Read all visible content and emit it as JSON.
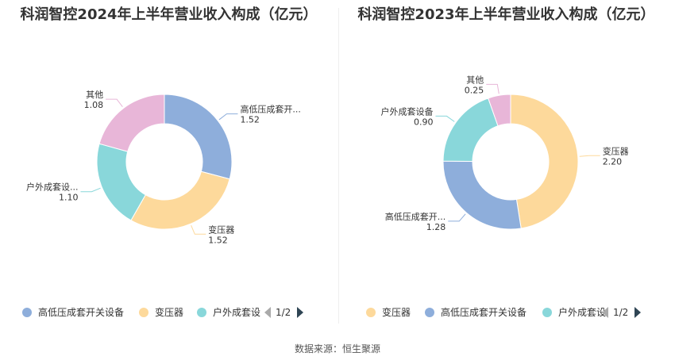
{
  "source": "数据来源：恒生聚源",
  "chart_data": [
    {
      "type": "pie",
      "title": "科润智控2024年上半年营业收入构成（亿元）",
      "slices": [
        {
          "label": "高低压成套开...",
          "value": 1.52,
          "value_label": "1.52",
          "color": "#8eaedb"
        },
        {
          "label": "变压器",
          "value": 1.52,
          "value_label": "1.52",
          "color": "#fdd99b"
        },
        {
          "label": "户外成套设...",
          "value": 1.1,
          "value_label": "1.10",
          "color": "#89d7da"
        },
        {
          "label": "其他",
          "value": 1.08,
          "value_label": "1.08",
          "color": "#e8b6d8"
        }
      ],
      "legend": {
        "items": [
          {
            "label": "高低压成套开关设备",
            "color": "#8eaedb"
          },
          {
            "label": "变压器",
            "color": "#fdd99b"
          },
          {
            "label": "户外成套设",
            "color": "#89d7da"
          }
        ],
        "page": "1/2",
        "placement": "bottom"
      }
    },
    {
      "type": "pie",
      "title": "科润智控2023年上半年营业收入构成（亿元）",
      "slices": [
        {
          "label": "变压器",
          "value": 2.2,
          "value_label": "2.20",
          "color": "#fdd99b"
        },
        {
          "label": "高低压成套开...",
          "value": 1.28,
          "value_label": "1.28",
          "color": "#8eaedb"
        },
        {
          "label": "户外成套设备",
          "value": 0.9,
          "value_label": "0.90",
          "color": "#89d7da"
        },
        {
          "label": "其他",
          "value": 0.25,
          "value_label": "0.25",
          "color": "#e8b6d8"
        }
      ],
      "legend": {
        "items": [
          {
            "label": "变压器",
            "color": "#fdd99b"
          },
          {
            "label": "高低压成套开关设备",
            "color": "#8eaedb"
          },
          {
            "label": "户外成套设",
            "color": "#89d7da"
          }
        ],
        "page": "1/2",
        "placement": "bottom"
      }
    }
  ]
}
